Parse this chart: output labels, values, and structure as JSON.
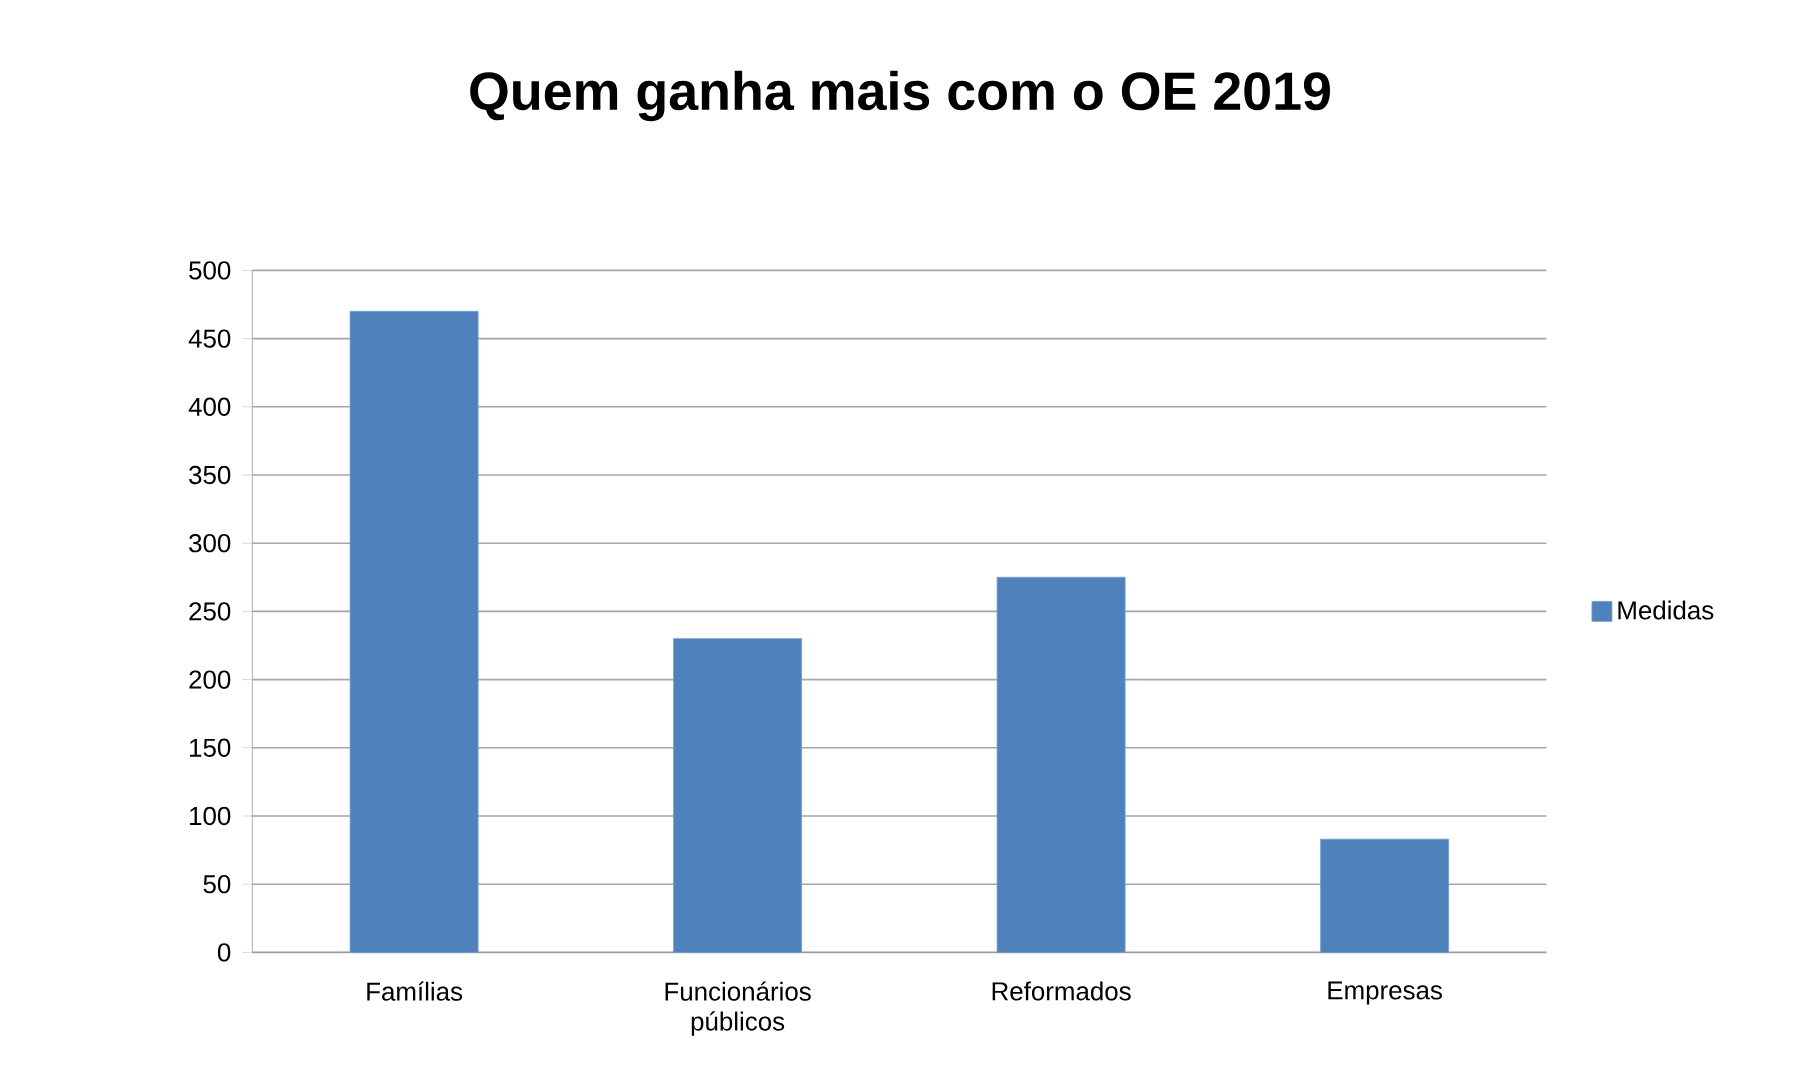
{
  "chart_data": {
    "type": "bar",
    "title": "Quem ganha mais com o OE 2019",
    "categories": [
      "Famílias",
      "Funcionários públicos",
      "Reformados",
      "Empresas"
    ],
    "series": [
      {
        "name": "Medidas",
        "color": "#4f81bd",
        "values": [
          470,
          230,
          275,
          83
        ]
      }
    ],
    "ylim": [
      0,
      500
    ],
    "yticks": [
      0,
      50,
      100,
      150,
      200,
      250,
      300,
      350,
      400,
      450,
      500
    ],
    "grid": "y",
    "legend": "right"
  }
}
